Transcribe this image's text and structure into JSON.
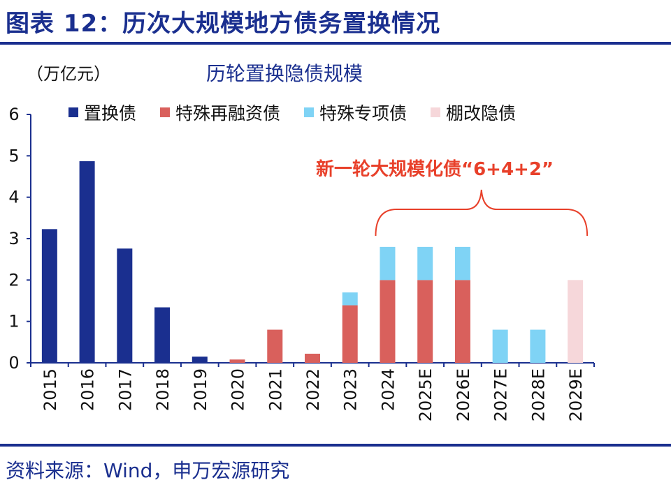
{
  "header": {
    "figure_title": "图表 12：历次大规模地方债务置换情况"
  },
  "footer": {
    "source": "资料来源：Wind，申万宏源研究"
  },
  "chart_data": {
    "type": "bar",
    "stacked": true,
    "title": "历轮置换隐债规模",
    "unit_label": "（万亿元）",
    "categories": [
      "2015",
      "2016",
      "2017",
      "2018",
      "2019",
      "2020",
      "2021",
      "2022",
      "2023",
      "2024",
      "2025E",
      "2026E",
      "2027E",
      "2028E",
      "2029E"
    ],
    "ylim": [
      0,
      6
    ],
    "yticks": [
      0,
      1,
      2,
      3,
      4,
      5,
      6
    ],
    "grid": false,
    "legend_position": "top",
    "series": [
      {
        "name": "置换债",
        "color": "#1a2f8f",
        "values": [
          3.23,
          4.87,
          2.76,
          1.34,
          0.15,
          0,
          0,
          0,
          0,
          0,
          0,
          0,
          0,
          0,
          0
        ]
      },
      {
        "name": "特殊再融资债",
        "color": "#d9605c",
        "values": [
          0,
          0,
          0,
          0,
          0,
          0.08,
          0.8,
          0.22,
          1.39,
          2.0,
          2.0,
          2.0,
          0,
          0,
          0
        ]
      },
      {
        "name": "特殊专项债",
        "color": "#7fd3f5",
        "values": [
          0,
          0,
          0,
          0,
          0,
          0,
          0,
          0,
          0.31,
          0.8,
          0.8,
          0.8,
          0.8,
          0.8,
          0
        ]
      },
      {
        "name": "棚改隐债",
        "color": "#f6d7da",
        "values": [
          0,
          0,
          0,
          0,
          0,
          0,
          0,
          0,
          0,
          0,
          0,
          0,
          0,
          0,
          2.0
        ]
      }
    ],
    "annotation": {
      "text": "新一轮大规模化债“6+4+2”",
      "color": "#e8402a",
      "brace_from": "2024",
      "brace_to": "2029E"
    }
  }
}
